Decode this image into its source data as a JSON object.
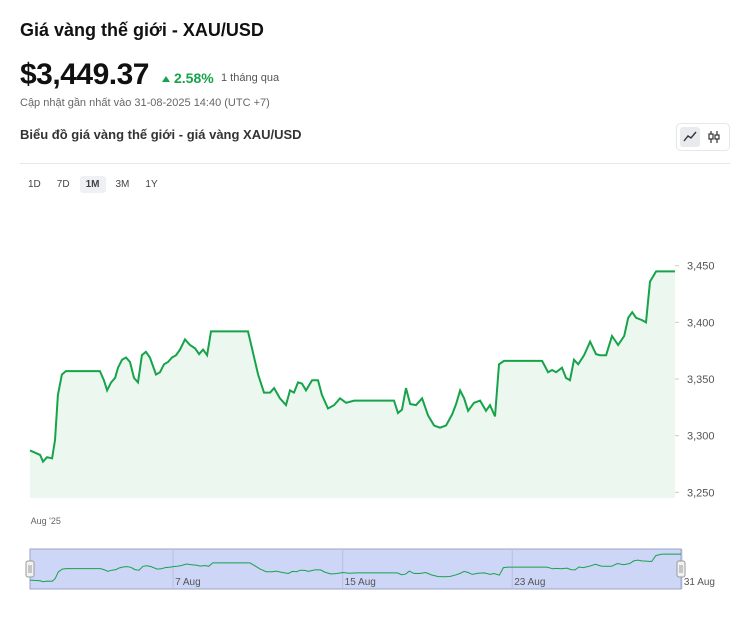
{
  "header": {
    "title": "Giá vàng thế giới - XAU/USD",
    "price": "$3,449.37",
    "change": "2.58%",
    "change_period": "1 tháng qua",
    "updated": "Cập nhật gần nhất vào 31-08-2025 14:40 (UTC +7)"
  },
  "subtitle": "Biểu đồ giá vàng thế giới - giá vàng XAU/USD",
  "ranges": [
    "1D",
    "7D",
    "1M",
    "3M",
    "1Y"
  ],
  "active_range": "1M",
  "chart_data": {
    "type": "area",
    "series": [
      {
        "color": "#16a34a",
        "x": [
          0.25,
          0.73,
          0.87,
          1.06,
          1.3,
          1.44,
          1.58,
          1.77,
          1.96,
          3.58,
          3.77,
          3.92,
          4.11,
          4.3,
          4.44,
          4.63,
          4.82,
          5.01,
          5.2,
          5.39,
          5.58,
          5.77,
          5.96,
          6.25,
          6.44,
          6.63,
          6.82,
          7.01,
          7.2,
          7.39,
          7.63,
          7.87,
          8.11,
          8.3,
          8.49,
          8.68,
          8.87,
          10.63,
          10.82,
          11.11,
          11.39,
          11.68,
          11.87,
          12.15,
          12.44,
          12.63,
          12.82,
          13.01,
          13.2,
          13.39,
          13.68,
          13.96,
          14.15,
          14.44,
          14.73,
          15.01,
          15.3,
          15.68,
          17.58,
          17.77,
          17.96,
          18.15,
          18.35,
          18.63,
          18.92,
          19.2,
          19.49,
          19.77,
          20.06,
          20.35,
          20.54,
          20.73,
          20.92,
          21.11,
          21.39,
          21.68,
          21.96,
          22.15,
          22.39,
          22.58,
          22.82,
          24.63,
          24.92,
          25.11,
          25.3,
          25.58,
          25.77,
          25.96,
          26.15,
          26.35,
          26.63,
          26.92,
          27.2,
          27.39,
          27.68,
          27.96,
          28.25,
          28.54,
          28.73,
          28.92,
          29.11,
          29.39,
          29.58,
          29.77,
          30.06,
          30.96
        ],
        "values": [
          3287,
          3283,
          3277,
          3281,
          3280,
          3296,
          3336,
          3354,
          3357,
          3357,
          3349,
          3340,
          3347,
          3351,
          3360,
          3367,
          3369,
          3365,
          3351,
          3347,
          3371,
          3374,
          3369,
          3354,
          3356,
          3363,
          3365,
          3369,
          3371,
          3376,
          3385,
          3380,
          3377,
          3372,
          3376,
          3371,
          3392,
          3392,
          3377,
          3354,
          3338,
          3338,
          3342,
          3333,
          3327,
          3340,
          3338,
          3347,
          3346,
          3340,
          3349,
          3349,
          3336,
          3324,
          3327,
          3333,
          3329,
          3331,
          3331,
          3320,
          3323,
          3342,
          3328,
          3327,
          3333,
          3318,
          3309,
          3307,
          3309,
          3319,
          3328,
          3340,
          3333,
          3322,
          3329,
          3331,
          3322,
          3327,
          3317,
          3363,
          3366,
          3366,
          3356,
          3358,
          3356,
          3360,
          3351,
          3349,
          3367,
          3363,
          3371,
          3383,
          3372,
          3371,
          3371,
          3388,
          3380,
          3388,
          3404,
          3409,
          3404,
          3402,
          3400,
          3436,
          3445,
          3445
        ]
      }
    ],
    "fill": "#ecf7ef",
    "xlim": [
      0.25,
      30.96
    ],
    "xticks": [
      {
        "value": 1,
        "label": "Aug '25"
      }
    ],
    "ylim": [
      3245,
      3508
    ],
    "yticks": [
      {
        "value": 3250,
        "label": "3,250"
      },
      {
        "value": 3300,
        "label": "3,300"
      },
      {
        "value": 3350,
        "label": "3,350"
      },
      {
        "value": 3400,
        "label": "3,400"
      },
      {
        "value": 3450,
        "label": "3,450"
      }
    ],
    "navigator": {
      "xticks": [
        {
          "value": 7,
          "label": "7 Aug"
        },
        {
          "value": 15,
          "label": "15 Aug"
        },
        {
          "value": 23,
          "label": "23 Aug"
        },
        {
          "value": 31,
          "label": "31 Aug"
        }
      ]
    }
  }
}
